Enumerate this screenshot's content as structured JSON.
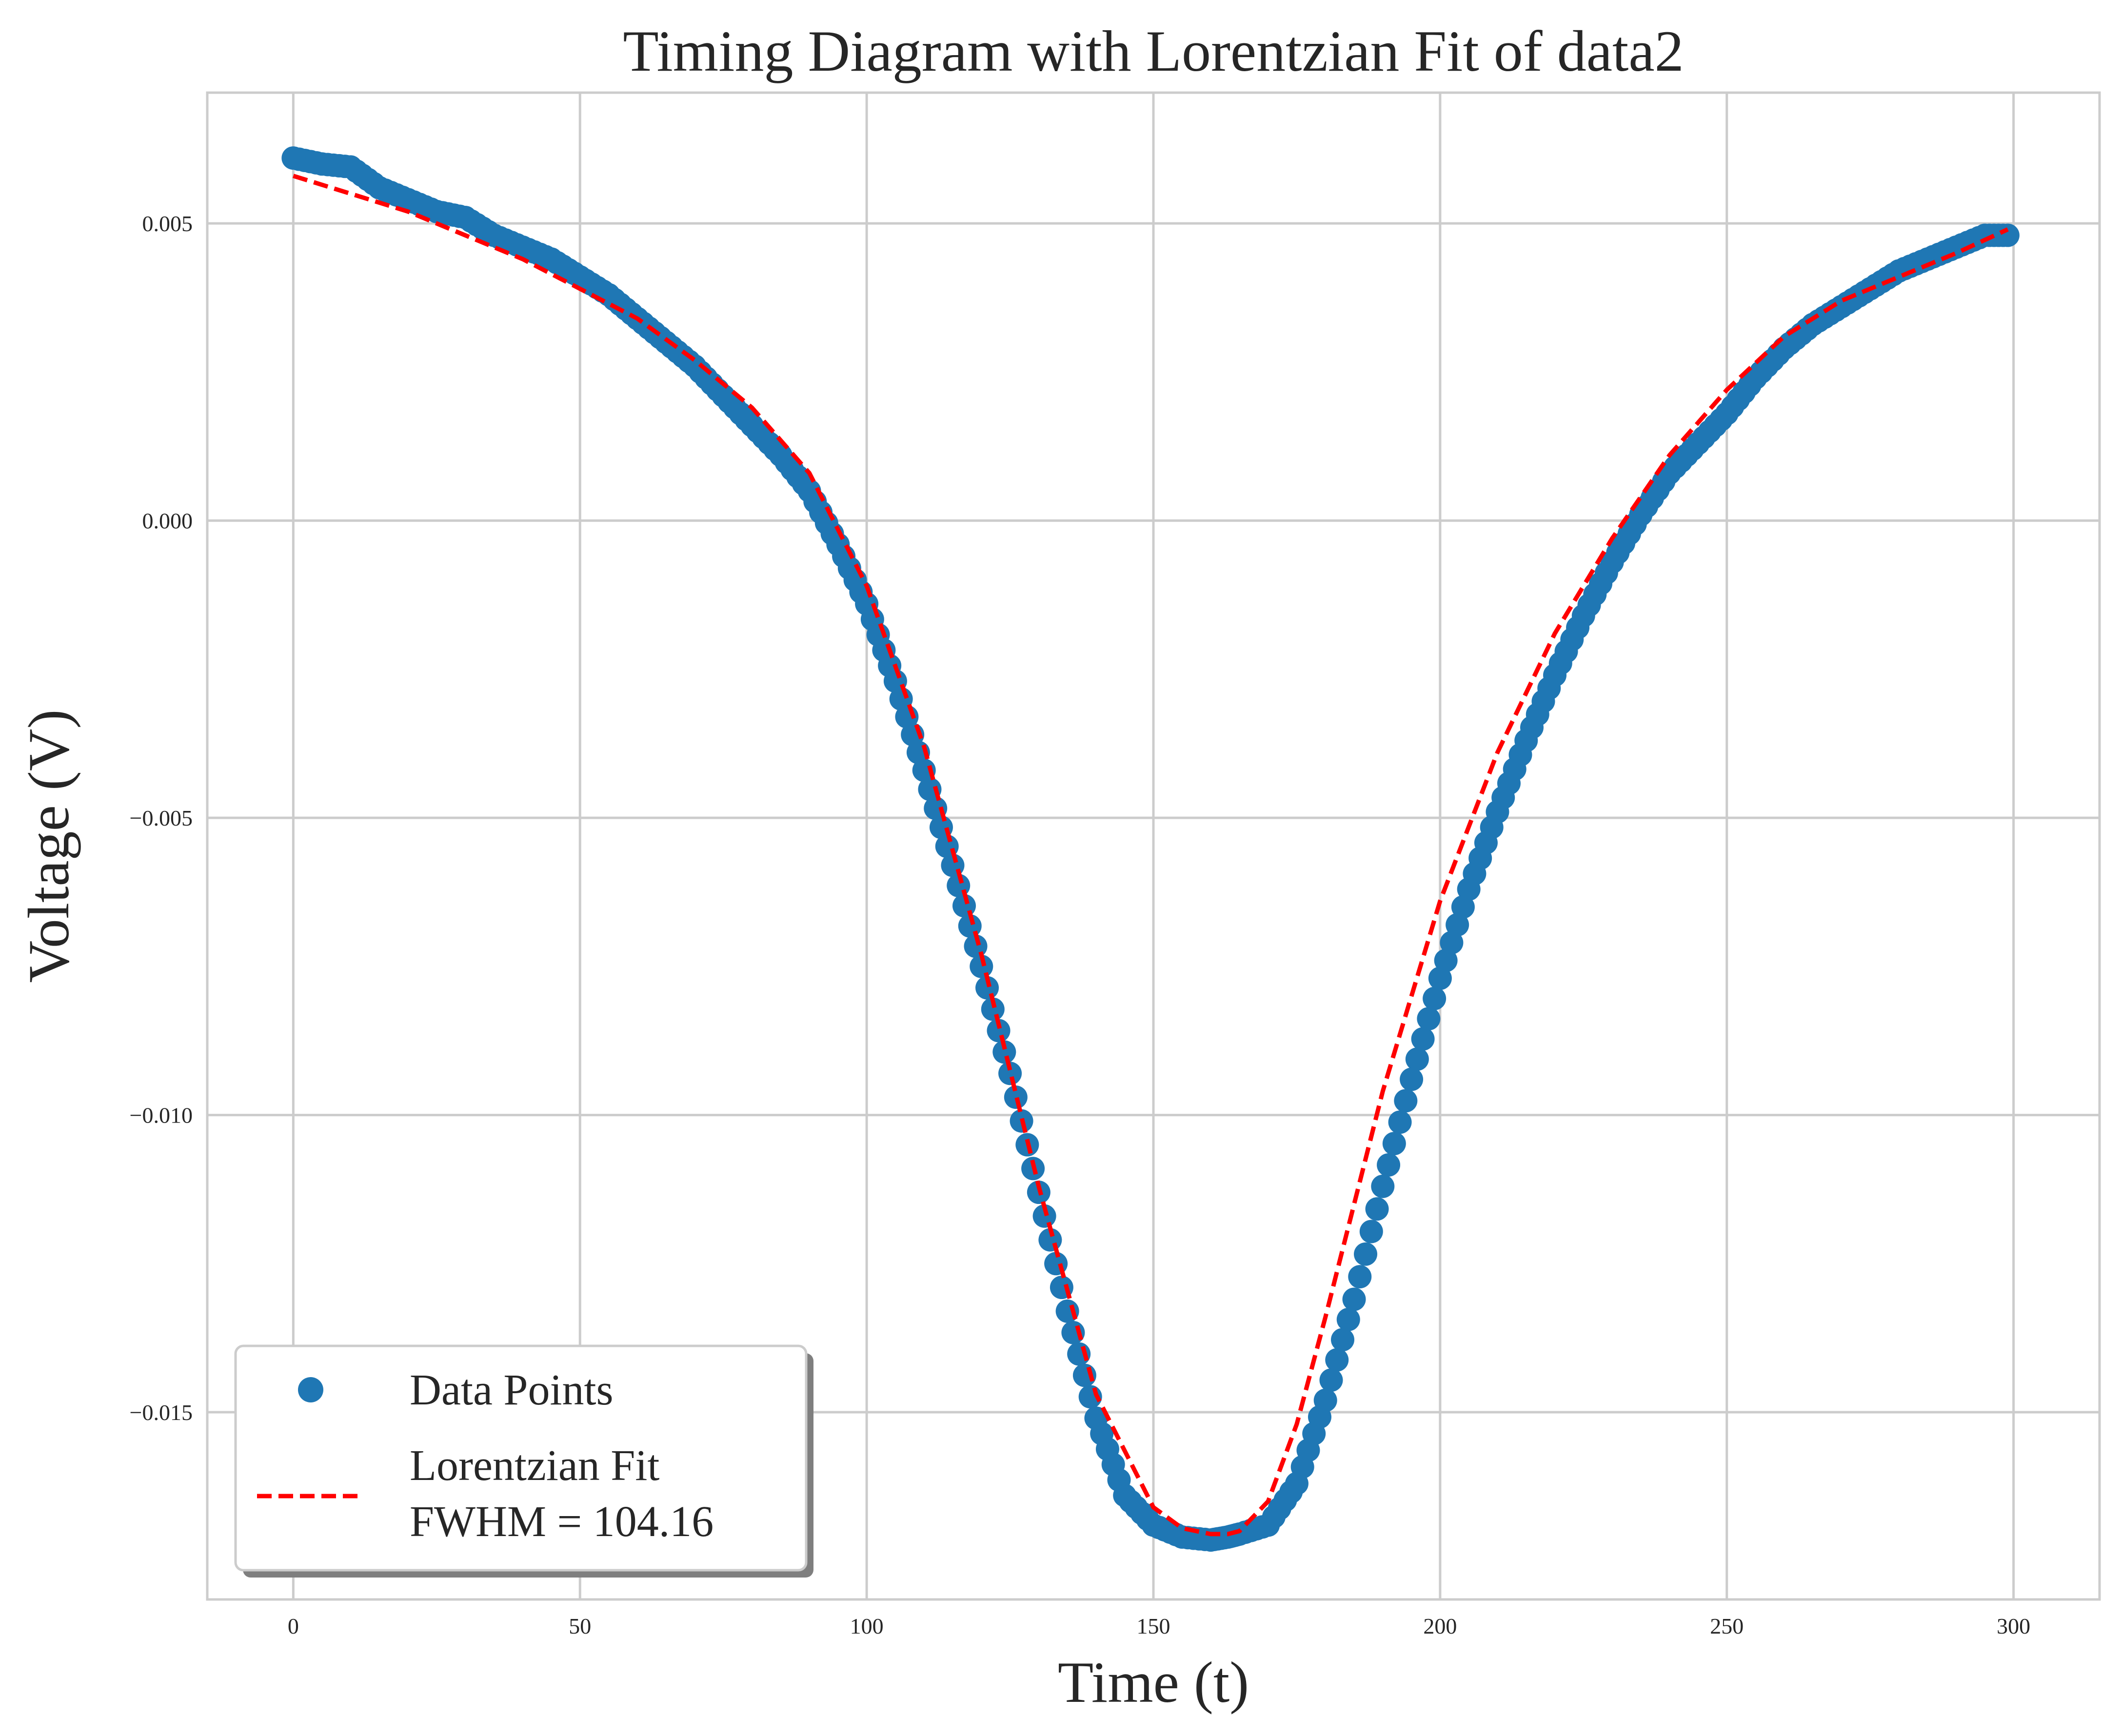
{
  "chart_data": {
    "type": "scatter",
    "title": "Timing Diagram with Lorentzian Fit of data2",
    "xlabel": "Time (t)",
    "ylabel": "Voltage (V)",
    "xlim": [
      -15,
      315
    ],
    "ylim": [
      -0.01815,
      0.0072
    ],
    "x_ticks": [
      0,
      50,
      100,
      150,
      200,
      250,
      300
    ],
    "y_ticks": [
      0.005,
      0.0,
      -0.005,
      -0.01,
      -0.015
    ],
    "x_tick_labels": [
      "0",
      "50",
      "100",
      "150",
      "200",
      "250",
      "300"
    ],
    "y_tick_labels": [
      "0.005",
      "0.000",
      "−0.005",
      "−0.010",
      "−0.015"
    ],
    "grid": true,
    "legend_position": "lower-left",
    "series": [
      {
        "name": "Data Points",
        "kind": "scatter",
        "color": "#1f77b4",
        "x": [
          0,
          5,
          10,
          15,
          20,
          25,
          30,
          35,
          40,
          45,
          50,
          55,
          60,
          65,
          70,
          75,
          80,
          85,
          90,
          95,
          100,
          105,
          110,
          115,
          120,
          125,
          130,
          135,
          140,
          145,
          150,
          155,
          160,
          163,
          165,
          170,
          175,
          180,
          185,
          190,
          195,
          200,
          205,
          210,
          215,
          220,
          225,
          230,
          235,
          240,
          245,
          250,
          255,
          260,
          265,
          270,
          275,
          280,
          285,
          290,
          295,
          299
        ],
        "y": [
          0.0061,
          0.006,
          0.00595,
          0.0056,
          0.0054,
          0.0052,
          0.0051,
          0.0048,
          0.0046,
          0.0044,
          0.0041,
          0.0038,
          0.0034,
          0.003,
          0.0026,
          0.0021,
          0.0016,
          0.0011,
          0.0005,
          -0.0004,
          -0.0014,
          -0.0027,
          -0.0042,
          -0.0058,
          -0.0075,
          -0.0093,
          -0.0113,
          -0.0133,
          -0.0151,
          -0.0164,
          -0.0169,
          -0.0171,
          -0.01715,
          -0.0171,
          -0.01705,
          -0.0169,
          -0.0162,
          -0.0148,
          -0.0131,
          -0.0112,
          -0.0094,
          -0.0077,
          -0.0062,
          -0.0049,
          -0.0037,
          -0.0026,
          -0.0016,
          -0.0007,
          0.0001,
          0.0008,
          0.0013,
          0.0018,
          0.0024,
          0.0029,
          0.0033,
          0.0036,
          0.0039,
          0.0042,
          0.0044,
          0.0046,
          0.0048,
          0.0048
        ]
      },
      {
        "name": "Lorentzian Fit\nFWHM = 104.16",
        "name_lines": [
          "Lorentzian Fit",
          "FWHM = 104.16"
        ],
        "kind": "line",
        "style": "dashed",
        "color": "#ff0000",
        "x": [
          0,
          10,
          20,
          30,
          40,
          50,
          60,
          70,
          80,
          90,
          100,
          110,
          120,
          130,
          140,
          150,
          155,
          160,
          163,
          165,
          170,
          175,
          180,
          190,
          200,
          210,
          220,
          230,
          240,
          250,
          260,
          270,
          280,
          290,
          299
        ],
        "y": [
          0.0058,
          0.0055,
          0.0052,
          0.0048,
          0.0044,
          0.0039,
          0.0034,
          0.0027,
          0.0019,
          0.0008,
          -0.0011,
          -0.0038,
          -0.0073,
          -0.0112,
          -0.0147,
          -0.0166,
          -0.01695,
          -0.01705,
          -0.01705,
          -0.017,
          -0.0165,
          -0.0152,
          -0.0134,
          -0.0096,
          -0.0064,
          -0.0039,
          -0.0019,
          -0.0003,
          0.0011,
          0.0022,
          0.0031,
          0.0037,
          0.0041,
          0.0045,
          0.0049
        ]
      }
    ]
  }
}
